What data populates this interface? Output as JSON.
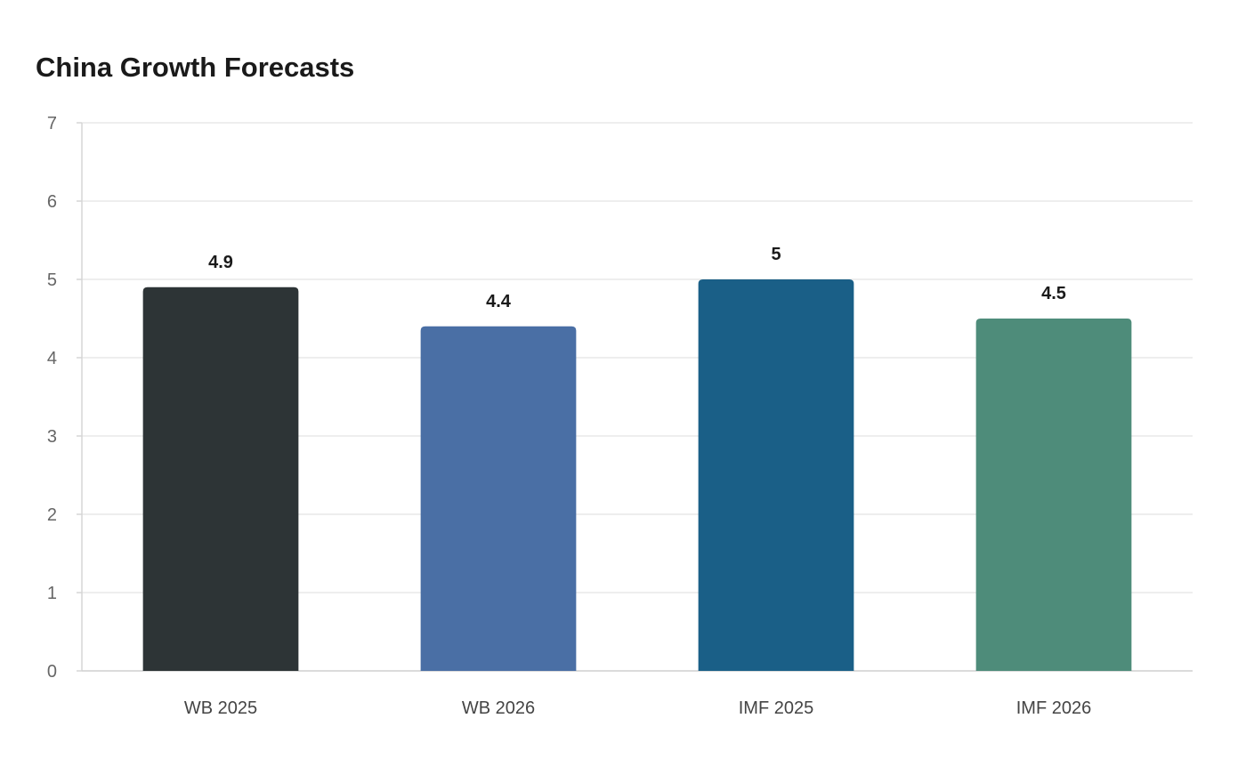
{
  "chart_data": {
    "type": "bar",
    "title": "China Growth Forecasts",
    "xlabel": "",
    "ylabel": "",
    "categories": [
      "WB 2025",
      "WB 2026",
      "IMF 2025",
      "IMF 2026"
    ],
    "values": [
      4.9,
      4.4,
      5,
      4.5
    ],
    "data_labels": [
      "4.9",
      "4.4",
      "5",
      "4.5"
    ],
    "colors": [
      "#2d3436",
      "#4a6fa5",
      "#1a5f87",
      "#4e8c7a"
    ],
    "ylim": [
      0,
      7
    ],
    "yticks": [
      0,
      1,
      2,
      3,
      4,
      5,
      6,
      7
    ],
    "grid": true,
    "legend": "none"
  }
}
